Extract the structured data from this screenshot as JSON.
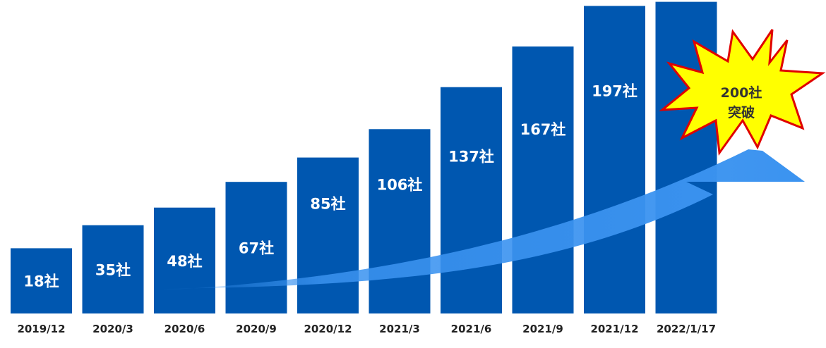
{
  "chart_data": {
    "type": "bar",
    "categories": [
      "2019/12",
      "2020/3",
      "2020/6",
      "2020/9",
      "2020/12",
      "2021/3",
      "2021/6",
      "2021/9",
      "2021/12",
      "2022/1/17"
    ],
    "values": [
      18,
      35,
      48,
      67,
      85,
      106,
      137,
      167,
      197,
      200
    ],
    "data_labels": [
      "18社",
      "35社",
      "48社",
      "67社",
      "85社",
      "106社",
      "137社",
      "167社",
      "197社",
      ""
    ],
    "ylim": [
      0,
      200
    ],
    "grid": false,
    "legend": "none",
    "colors": {
      "bar": "#0057b0",
      "arrow": "#3b93f0",
      "burst_fill": "#ffff00",
      "burst_stroke": "#e00000"
    },
    "annotation": {
      "line1": "200社",
      "line2": "突破"
    }
  }
}
